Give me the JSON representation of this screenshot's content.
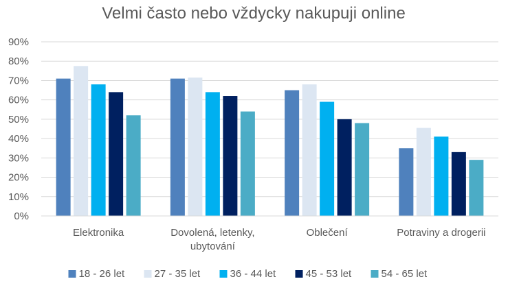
{
  "chart_data": {
    "type": "bar",
    "title": "Velmi často nebo vždycky nakupuji online",
    "xlabel": "",
    "ylabel": "",
    "ylim": [
      0,
      90
    ],
    "yticks": [
      "0%",
      "10%",
      "20%",
      "30%",
      "40%",
      "50%",
      "60%",
      "70%",
      "80%",
      "90%"
    ],
    "grid": true,
    "legend_position": "bottom",
    "categories": [
      [
        "Elektronika"
      ],
      [
        "Dovolená, letenky,",
        "ubytování"
      ],
      [
        "Oblečení"
      ],
      [
        "Potraviny a drogerii"
      ]
    ],
    "series": [
      {
        "name": "18 - 26 let",
        "color": "#4F81BD",
        "values": [
          71,
          71,
          65,
          35
        ]
      },
      {
        "name": "27 - 35 let",
        "color": "#DCE6F2",
        "values": [
          77.5,
          71.5,
          68,
          45.5
        ]
      },
      {
        "name": "36 - 44 let",
        "color": "#00B0F0",
        "values": [
          68,
          64,
          59,
          41
        ]
      },
      {
        "name": "45 - 53 let",
        "color": "#002060",
        "values": [
          64,
          62,
          50,
          33
        ]
      },
      {
        "name": "54 - 65 let",
        "color": "#4BACC6",
        "values": [
          52,
          54,
          48,
          29
        ]
      }
    ]
  }
}
